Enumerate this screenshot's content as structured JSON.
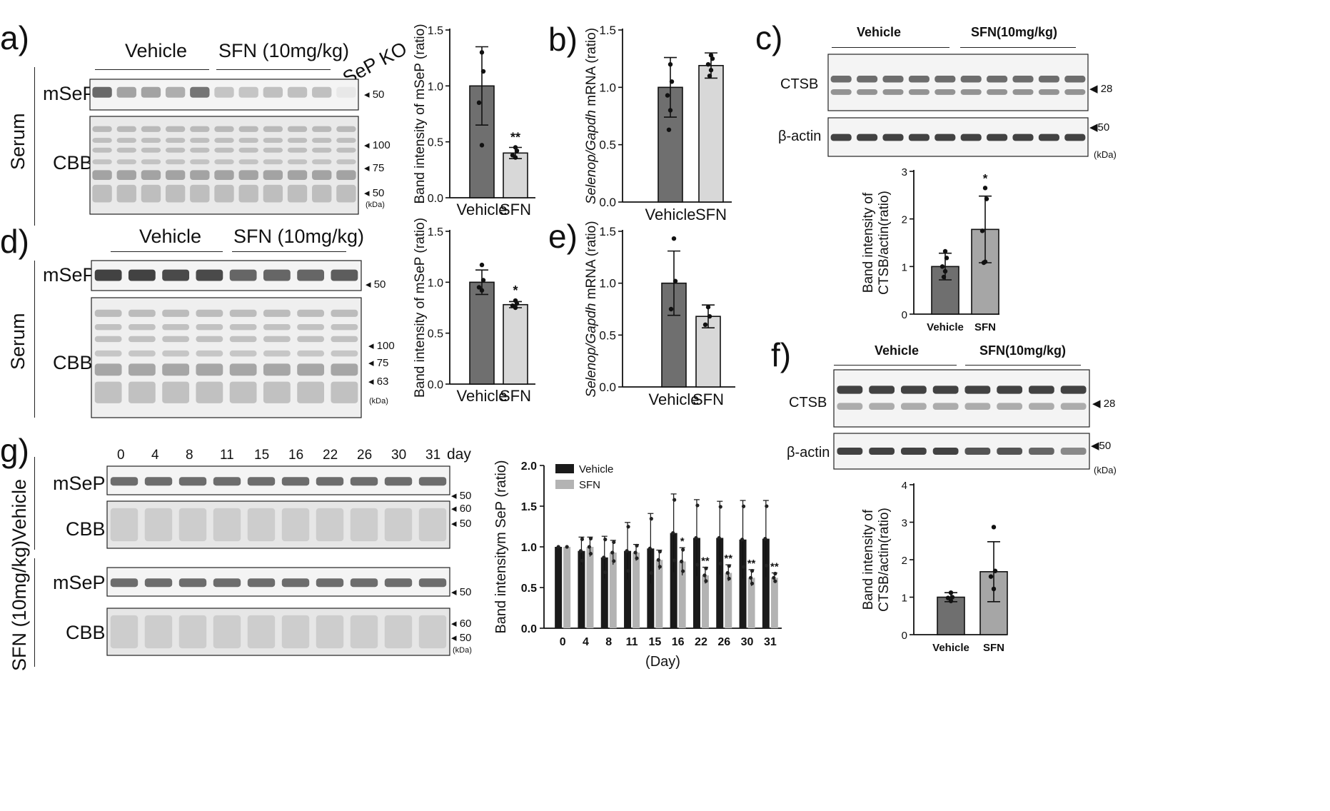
{
  "panels": {
    "a": {
      "label": "a)",
      "groups": [
        "Vehicle",
        "SFN (10mg/kg)",
        "SeP KO"
      ],
      "side_label": "Serum",
      "rows": [
        "mSeP",
        "CBB"
      ],
      "markers_top": [
        "50"
      ],
      "markers_bottom": [
        "100",
        "75",
        "50"
      ],
      "kda": "(kDa)",
      "lanes": 11
    },
    "d": {
      "label": "d)",
      "groups": [
        "Vehicle",
        "SFN (10mg/kg)"
      ],
      "side_label": "Serum",
      "rows": [
        "mSeP",
        "CBB"
      ],
      "markers_top": [
        "50"
      ],
      "markers_bottom": [
        "100",
        "75",
        "63"
      ],
      "kda": "(kDa)",
      "lanes": 8
    },
    "c": {
      "label": "c)",
      "groups": [
        "Vehicle",
        "SFN(10mg/kg)"
      ],
      "rows": [
        "CTSB",
        "β-actin"
      ],
      "markers": [
        "28",
        "50"
      ],
      "kda": "(kDa)",
      "lanes": 10
    },
    "f": {
      "label": "f)",
      "groups": [
        "Vehicle",
        "SFN(10mg/kg)"
      ],
      "rows": [
        "CTSB",
        "β-actin"
      ],
      "markers": [
        "28",
        "50"
      ],
      "kda": "(kDa)",
      "lanes": 8
    },
    "b": {
      "label": "b)"
    },
    "e": {
      "label": "e)"
    },
    "g": {
      "label": "g)",
      "days": [
        "0",
        "4",
        "8",
        "11",
        "15",
        "16",
        "22",
        "26",
        "30",
        "31"
      ],
      "day_word": "day",
      "side_labels": [
        "Vehicle",
        "SFN (10mg/kg)"
      ],
      "rows": [
        "mSeP",
        "CBB"
      ],
      "markers_mseP": [
        "50"
      ],
      "markers_cbb": [
        "60",
        "50"
      ],
      "kda": "(kDa)"
    }
  },
  "chart_data": [
    {
      "id": "a-bar",
      "type": "bar",
      "categories": [
        "Vehicle",
        "SFN"
      ],
      "values": [
        1.0,
        0.4
      ],
      "errors": [
        0.35,
        0.05
      ],
      "points": [
        [
          1.3,
          1.13,
          0.85,
          0.47
        ],
        [
          0.45,
          0.42,
          0.38,
          0.36
        ]
      ],
      "ylabel": "Band intensity of mSeP (ratio)",
      "ylim": [
        0,
        1.5
      ],
      "yticks": [
        "0.0",
        "0.5",
        "1.0",
        "1.5"
      ],
      "significance": [
        "",
        "**"
      ],
      "colors": [
        "#6f6f6f",
        "#d8d8d8"
      ]
    },
    {
      "id": "b-bar",
      "type": "bar",
      "categories": [
        "Vehicle",
        "SFN"
      ],
      "values": [
        1.0,
        1.19
      ],
      "errors": [
        0.26,
        0.11
      ],
      "points": [
        [
          1.2,
          1.05,
          0.93,
          0.8,
          0.63
        ],
        [
          1.28,
          1.25,
          1.2,
          1.15,
          1.1
        ]
      ],
      "ylabel": "Selenop/Gapdh mRNA (ratio)",
      "ylim": [
        0,
        1.5
      ],
      "yticks": [
        "0.0",
        "0.5",
        "1.0",
        "1.5"
      ],
      "significance": [
        "",
        ""
      ],
      "colors": [
        "#6f6f6f",
        "#d8d8d8"
      ]
    },
    {
      "id": "d-bar",
      "type": "bar",
      "categories": [
        "Vehicle",
        "SFN"
      ],
      "values": [
        1.0,
        0.78
      ],
      "errors": [
        0.12,
        0.03
      ],
      "points": [
        [
          1.17,
          1.02,
          0.95,
          0.92
        ],
        [
          0.82,
          0.79,
          0.77,
          0.75
        ]
      ],
      "ylabel": "Band intensity of mSeP (ratio)",
      "ylim": [
        0,
        1.5
      ],
      "yticks": [
        "0.0",
        "0.5",
        "1.0",
        "1.5"
      ],
      "significance": [
        "",
        "*"
      ],
      "colors": [
        "#6f6f6f",
        "#d8d8d8"
      ]
    },
    {
      "id": "e-bar",
      "type": "bar",
      "categories": [
        "Vehicle",
        "SFN"
      ],
      "values": [
        1.0,
        0.68
      ],
      "errors": [
        0.31,
        0.11
      ],
      "points": [
        [
          1.43,
          1.02,
          0.75
        ],
        [
          0.77,
          0.68,
          0.6
        ]
      ],
      "ylabel": "Selenop/Gapdh mRNA (ratio)",
      "ylim": [
        0,
        1.5
      ],
      "yticks": [
        "0.0",
        "0.5",
        "1.0",
        "1.5"
      ],
      "significance": [
        "",
        ""
      ],
      "colors": [
        "#6f6f6f",
        "#d8d8d8"
      ]
    },
    {
      "id": "c-bar",
      "type": "bar",
      "categories": [
        "Vehicle",
        "SFN"
      ],
      "values": [
        1.0,
        1.78
      ],
      "errors": [
        0.28,
        0.7
      ],
      "points": [
        [
          1.32,
          1.18,
          1.0,
          0.9,
          0.78
        ],
        [
          2.65,
          2.42,
          1.75,
          1.1,
          1.08
        ]
      ],
      "ylabel": "Band intensity of CTSB/actin(ratio)",
      "ylim": [
        0,
        3
      ],
      "yticks": [
        "0",
        "1",
        "2",
        "3"
      ],
      "significance": [
        "",
        "*"
      ],
      "colors": [
        "#6f6f6f",
        "#a6a6a6"
      ]
    },
    {
      "id": "f-bar",
      "type": "bar",
      "categories": [
        "Vehicle",
        "SFN"
      ],
      "values": [
        1.0,
        1.68
      ],
      "errors": [
        0.12,
        0.8
      ],
      "points": [
        [
          1.12,
          1.0,
          0.98,
          0.9
        ],
        [
          2.87,
          1.7,
          1.55,
          1.22
        ]
      ],
      "ylabel": "Band intensity of CTSB/actin(ratio)",
      "ylim": [
        0,
        4
      ],
      "yticks": [
        "0",
        "1",
        "2",
        "3",
        "4"
      ],
      "significance": [
        "",
        ""
      ],
      "colors": [
        "#6f6f6f",
        "#a6a6a6"
      ]
    },
    {
      "id": "g-bar",
      "type": "bar",
      "categories": [
        "0",
        "4",
        "8",
        "11",
        "15",
        "16",
        "22",
        "26",
        "30",
        "31"
      ],
      "series": [
        {
          "name": "Vehicle",
          "values": [
            1.0,
            0.95,
            0.87,
            0.95,
            0.98,
            1.17,
            1.11,
            1.11,
            1.09,
            1.1
          ],
          "errors": [
            0.0,
            0.17,
            0.26,
            0.35,
            0.43,
            0.48,
            0.47,
            0.45,
            0.48,
            0.47
          ]
        },
        {
          "name": "SFN",
          "values": [
            1.0,
            1.0,
            0.93,
            0.93,
            0.84,
            0.82,
            0.65,
            0.68,
            0.62,
            0.62
          ],
          "errors": [
            0.0,
            0.12,
            0.15,
            0.1,
            0.12,
            0.17,
            0.1,
            0.1,
            0.1,
            0.06
          ]
        }
      ],
      "significance": [
        "",
        "",
        "",
        "",
        "",
        "*",
        "**",
        "**",
        "**",
        "**"
      ],
      "xlabel": "(Day)",
      "ylabel": "Band intensitym SeP (ratio)",
      "ylim": [
        0,
        2.0
      ],
      "yticks": [
        "0.0",
        "0.5",
        "1.0",
        "1.5",
        "2.0"
      ],
      "legend_position": "top-left",
      "colors": [
        "#1a1a1a",
        "#b3b3b3"
      ]
    }
  ]
}
